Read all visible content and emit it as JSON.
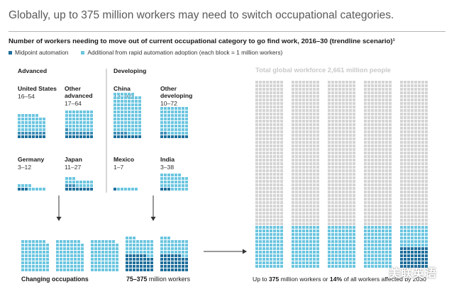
{
  "headline": "Globally, up to 375 million workers may need to switch occupational categories.",
  "subtitle": "Number of workers needing to move out of current occupational category to go find work, 2016–30 (trendline scenario)¹",
  "legend": {
    "midpoint": "Midpoint automation",
    "additional": "Additional from rapid automation adoption (each block = 1 million workers)"
  },
  "colors": {
    "midpoint": "#1f6f9b",
    "midpoint_mid": "#3f8fb8",
    "additional": "#6cc6e0",
    "grey": "#d4d4d4",
    "arrow": "#333333"
  },
  "groups": {
    "advanced": "Advanced",
    "developing": "Developing"
  },
  "countries": [
    {
      "name": "United States",
      "range": "16–54",
      "group": "advanced"
    },
    {
      "name": "Other advanced",
      "range": "17–64",
      "group": "advanced"
    },
    {
      "name": "China",
      "range": "12–102",
      "group": "developing"
    },
    {
      "name": "Other developing",
      "range": "10–72",
      "group": "developing"
    },
    {
      "name": "Germany",
      "range": "3–12",
      "group": "advanced"
    },
    {
      "name": "Japan",
      "range": "11–27",
      "group": "advanced"
    },
    {
      "name": "Mexico",
      "range": "1–7",
      "group": "developing"
    },
    {
      "name": "India",
      "range": "3–38",
      "group": "developing"
    }
  ],
  "total_label": "Total global workforce 2,661 million people",
  "captions": {
    "changing_left": "Changing occupations",
    "changing_right_value": "75–375",
    "changing_right_unit": "million workers",
    "total_prefix": "Up to",
    "total_value": "375",
    "total_mid": "million workers or",
    "total_pct": "14%",
    "total_suffix": "of all workers affected by 2030"
  },
  "watermark": "美联英语",
  "chart_data": {
    "type": "waffle",
    "unit": "million workers",
    "series": [
      {
        "name": "Midpoint automation"
      },
      {
        "name": "Additional from rapid automation adoption"
      }
    ],
    "categories": [
      "United States",
      "Other advanced",
      "China",
      "Other developing",
      "Germany",
      "Japan",
      "Mexico",
      "India"
    ],
    "low": [
      16,
      17,
      12,
      10,
      3,
      11,
      1,
      3
    ],
    "high": [
      54,
      64,
      102,
      72,
      12,
      27,
      7,
      38
    ],
    "changing_occupations_range": [
      75,
      375
    ],
    "total_global_workforce": 2661,
    "total_affected_max": 375,
    "share_affected_pct": 14
  }
}
